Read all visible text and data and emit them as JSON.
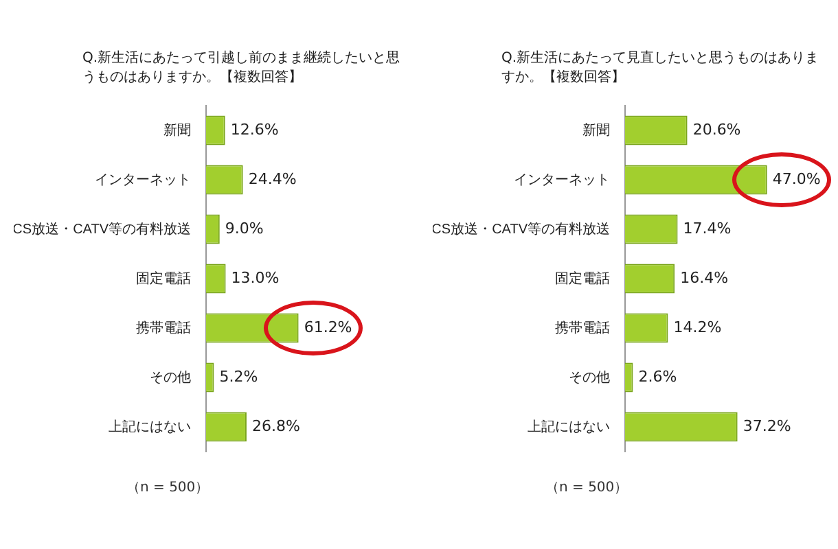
{
  "chart_data": [
    {
      "type": "bar",
      "orientation": "horizontal",
      "title": "Q.新生活にあたって引越し前のまま継続したいと思うものはありますか。【複数回答】",
      "categories": [
        "新聞",
        "インターネット",
        "CS放送・CATV等の有料放送",
        "固定電話",
        "携帯電話",
        "その他",
        "上記にはない"
      ],
      "values": [
        12.6,
        24.4,
        9.0,
        13.0,
        61.2,
        5.2,
        26.8
      ],
      "color": "#a2cf2e",
      "value_labels": [
        "12.6%",
        "24.4%",
        "9.0%",
        "13.0%",
        "61.2%",
        "5.2%",
        "26.8%"
      ],
      "tick_labels": "y",
      "legend": false,
      "annotations": [
        "（n = 500）"
      ]
    },
    {
      "type": "bar",
      "orientation": "horizontal",
      "title": "Q.新生活にあたって見直したいと思うものはありますか。【複数回答】",
      "categories": [
        "新聞",
        "インターネット",
        "CS放送・CATV等の有料放送",
        "固定電話",
        "携帯電話",
        "その他",
        "上記にはない"
      ],
      "values": [
        20.6,
        47.0,
        17.4,
        16.4,
        14.2,
        2.6,
        37.2
      ],
      "color": "#a2cf2e",
      "value_labels": [
        "20.6%",
        "47.0%",
        "17.4%",
        "16.4%",
        "14.2%",
        "2.6%",
        "37.2%"
      ],
      "tick_labels": "y",
      "legend": false,
      "annotations": [
        "（n = 500）"
      ]
    }
  ]
}
